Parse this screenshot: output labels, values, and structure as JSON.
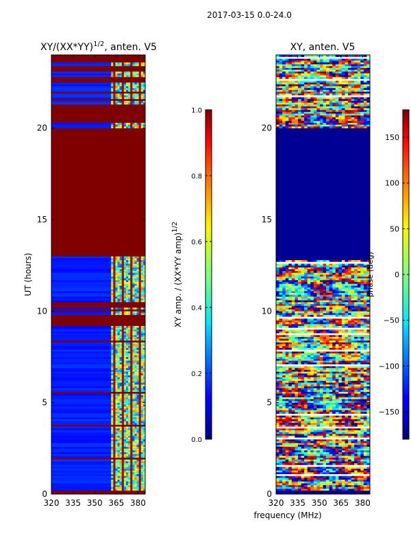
{
  "suptitle": "2017-03-15 0.0-24.0",
  "shared_xlabel": "frequency (MHz)",
  "chart_data": [
    {
      "type": "heatmap",
      "title_main": "XY/(XX*YY)",
      "title_sup": "1/2",
      "title_tail": ", anten. V5",
      "xlabel": "",
      "ylabel": "UT (hours)",
      "xlim": [
        320,
        385
      ],
      "ylim": [
        0,
        24
      ],
      "xticks": [
        320,
        335,
        350,
        365,
        380
      ],
      "xtick_labels": [
        "320",
        "335",
        "350",
        "365",
        "380"
      ],
      "yticks": [
        0,
        5,
        10,
        15,
        20
      ],
      "ytick_labels": [
        "0",
        "5",
        "10",
        "15",
        "20"
      ],
      "saturated_bands_hours": [
        [
          0,
          0.25
        ],
        [
          9.2,
          9.8
        ],
        [
          10.3,
          10.5
        ],
        [
          13.0,
          20.0
        ],
        [
          20.35,
          21.3
        ],
        [
          22.5,
          22.8
        ],
        [
          23.1,
          23.4
        ],
        [
          23.6,
          24
        ]
      ],
      "interference_band_mhz": [
        361,
        385
      ],
      "colorbar": {
        "label_main": "XY amp. / (XX*YY amp)",
        "label_sup": "1/2",
        "range": [
          0.0,
          1.0
        ],
        "ticks": [
          0.0,
          0.2,
          0.4,
          0.6,
          0.8,
          1.0
        ],
        "tick_labels": [
          "0.0",
          "0.2",
          "0.4",
          "0.6",
          "0.8",
          "1.0"
        ]
      }
    },
    {
      "type": "heatmap",
      "title": "XY, anten. V5",
      "xlabel": "frequency (MHz)",
      "ylabel": "",
      "xlim": [
        320,
        385
      ],
      "ylim": [
        0,
        24
      ],
      "xticks": [
        320,
        335,
        350,
        365,
        380
      ],
      "xtick_labels": [
        "320",
        "335",
        "350",
        "365",
        "380"
      ],
      "yticks": [
        0,
        5,
        10,
        15,
        20
      ],
      "ytick_labels": [
        "0",
        "5",
        "10",
        "15",
        "20"
      ],
      "flat_bands_hours": [
        [
          0,
          0.25
        ],
        [
          12.8,
          20.0
        ]
      ],
      "colorbar": {
        "label": "phase (deg)",
        "range": [
          -180,
          180
        ],
        "ticks": [
          -150,
          -100,
          -50,
          0,
          50,
          100,
          150
        ],
        "tick_labels": [
          "−150",
          "−100",
          "−50",
          "0",
          "50",
          "100",
          "150"
        ]
      }
    }
  ]
}
